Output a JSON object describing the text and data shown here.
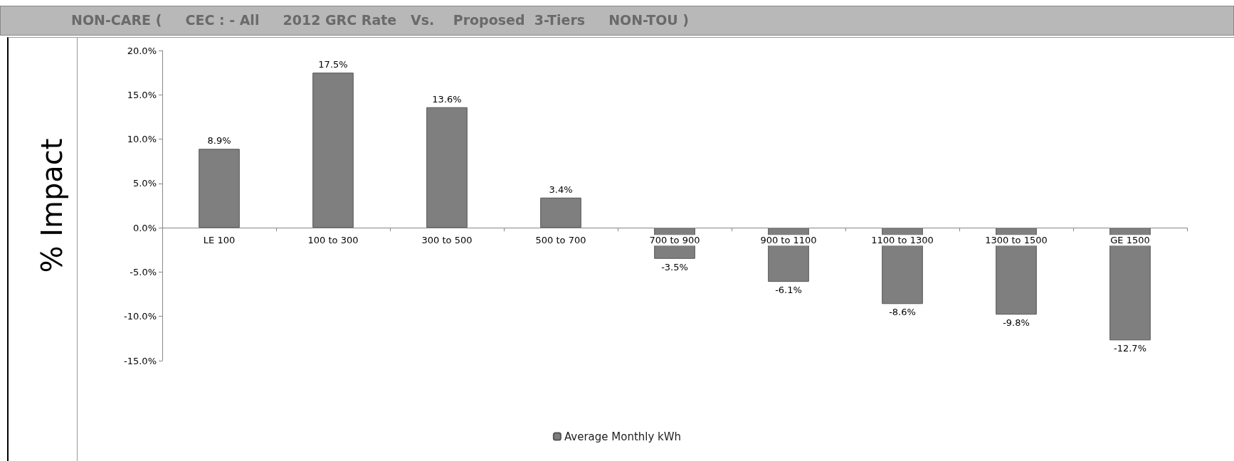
{
  "chart_data": {
    "type": "bar",
    "title": "NON-CARE (     CEC : - All     2012 GRC Rate   Vs.    Proposed  3-Tiers     NON-TOU )",
    "ylabel": "% Impact",
    "categories": [
      "LE 100",
      "100 to 300",
      "300 to 500",
      "500 to 700",
      "700 to 900",
      "900 to 1100",
      "1100 to 1300",
      "1300 to 1500",
      "GE 1500"
    ],
    "series": [
      {
        "name": "Average Monthly kWh",
        "color": "#7f7f7f",
        "values": [
          8.9,
          17.5,
          13.6,
          3.4,
          -3.5,
          -6.1,
          -8.6,
          -9.8,
          -12.7
        ],
        "value_labels": [
          "8.9%",
          "17.5%",
          "13.6%",
          "3.4%",
          "-3.5%",
          "-6.1%",
          "-8.6%",
          "-9.8%",
          "-12.7%"
        ]
      }
    ],
    "ylim": [
      -15,
      20
    ],
    "yticks": [
      {
        "value": -15,
        "label": "-15.0%"
      },
      {
        "value": -10,
        "label": "-10.0%"
      },
      {
        "value": -5,
        "label": "-5.0%"
      },
      {
        "value": 0,
        "label": "0.0%"
      },
      {
        "value": 5,
        "label": "5.0%"
      },
      {
        "value": 10,
        "label": "10.0%"
      },
      {
        "value": 15,
        "label": "15.0%"
      },
      {
        "value": 20,
        "label": "20.0%"
      }
    ],
    "grid": false,
    "legend": "bottom"
  }
}
